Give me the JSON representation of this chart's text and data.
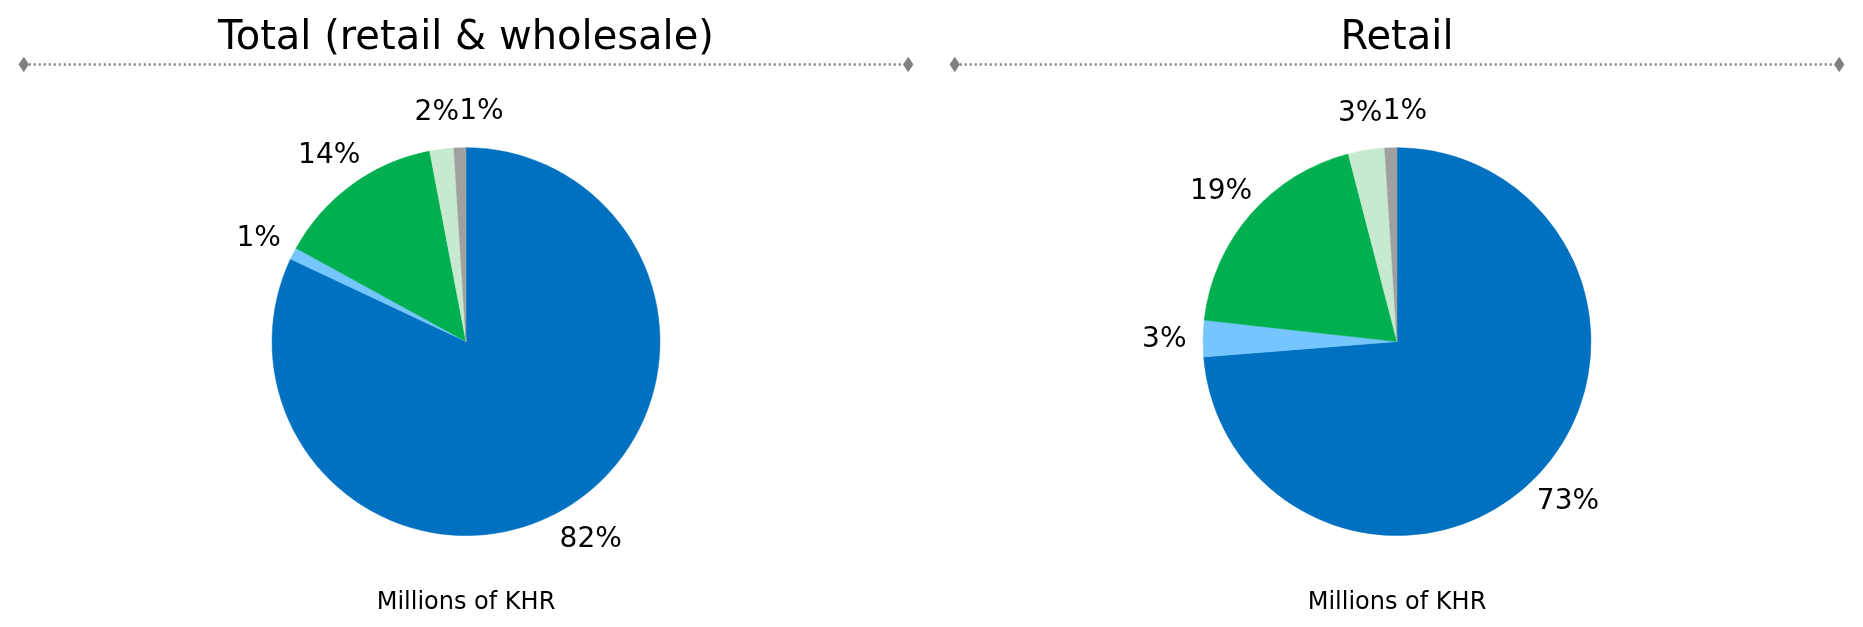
{
  "chart_data": [
    {
      "type": "pie",
      "title": "Total (retail & wholesale)",
      "categories": [
        null,
        null,
        null,
        null,
        null
      ],
      "values": [
        82,
        1,
        14,
        2,
        1
      ],
      "value_labels": [
        "82%",
        "1%",
        "14%",
        "2%",
        "1%"
      ],
      "colors": [
        "#0070c0",
        "#75c6ff",
        "#00b050",
        "#c6e9cf",
        "#a0a0a0"
      ],
      "annotations": [
        "Millions of KHR"
      ]
    },
    {
      "type": "pie",
      "title": "Retail",
      "categories": [
        null,
        null,
        null,
        null,
        null
      ],
      "values": [
        73,
        3,
        19,
        3,
        1
      ],
      "value_labels": [
        "73%",
        "3%",
        "19%",
        "3%",
        "1%"
      ],
      "colors": [
        "#0070c0",
        "#75c6ff",
        "#00b050",
        "#c6e9cf",
        "#a0a0a0"
      ],
      "annotations": [
        "Millions of KHR"
      ]
    }
  ]
}
